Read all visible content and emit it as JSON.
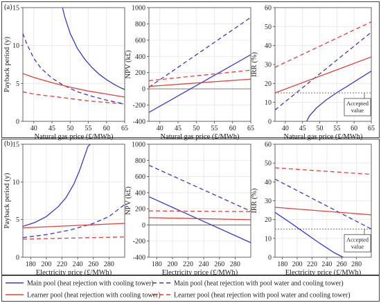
{
  "colors": {
    "blue": "#3a3acc",
    "red": "#e0403a",
    "brown": "#a8483a",
    "grid": "#e6e6e6",
    "frame": "#555555"
  },
  "chart_data": [
    {
      "id": "a1",
      "row_label": "(a)",
      "type": "line",
      "xlabel": "Natural gas price (£/MWh)",
      "ylabel": "Payback period (y)",
      "xlim": [
        37,
        65
      ],
      "ylim": [
        0,
        15
      ],
      "xticks": [
        "40",
        "45",
        "50",
        "55",
        "60",
        "65"
      ],
      "yticks": [
        "0",
        "5",
        "10",
        "15"
      ],
      "series": [
        {
          "name": "Main pool (heat rejection with cooling tower)",
          "style": "blue-solid",
          "x": [
            47.9,
            48.5,
            50,
            52,
            54,
            56,
            58,
            60,
            62,
            64,
            65
          ],
          "y": [
            15.0,
            13.8,
            11.6,
            9.6,
            8.2,
            7.1,
            6.2,
            5.5,
            4.9,
            4.4,
            4.2
          ]
        },
        {
          "name": "Main pool (heat rejection with pool water and cooling tower)",
          "style": "blue-dash",
          "x": [
            37,
            38,
            40,
            42,
            45,
            48,
            52,
            56,
            60,
            65
          ],
          "y": [
            11.6,
            10.3,
            8.3,
            7.0,
            5.7,
            4.8,
            3.9,
            3.3,
            2.8,
            2.3
          ]
        },
        {
          "name": "Learner pool (heat rejection with cooling tower)",
          "style": "red-solid",
          "x": [
            37,
            40,
            45,
            50,
            55,
            60,
            65
          ],
          "y": [
            6.3,
            5.8,
            5.1,
            4.5,
            4.0,
            3.6,
            3.2
          ]
        },
        {
          "name": "Learner pool (heat rejection with pool water and cooling tower)",
          "style": "red-dash",
          "x": [
            37,
            40,
            45,
            50,
            55,
            60,
            65
          ],
          "y": [
            3.9,
            3.6,
            3.3,
            3.0,
            2.7,
            2.5,
            2.3
          ]
        }
      ]
    },
    {
      "id": "a2",
      "type": "line",
      "xlabel": "Natural gas price (£/MWh)",
      "ylabel": "NPV (k£)",
      "xlim": [
        37,
        65
      ],
      "ylim": [
        -400,
        1000
      ],
      "xticks": [
        "40",
        "45",
        "50",
        "55",
        "60",
        "65"
      ],
      "yticks": [
        "-400",
        "-200",
        "0",
        "200",
        "400",
        "600",
        "800",
        "1000"
      ],
      "zero_line": true,
      "series": [
        {
          "style": "blue-solid",
          "x": [
            37,
            65
          ],
          "y": [
            -290,
            420
          ]
        },
        {
          "style": "blue-dash",
          "x": [
            37,
            65
          ],
          "y": [
            20,
            880
          ]
        },
        {
          "style": "red-solid",
          "x": [
            37,
            65
          ],
          "y": [
            30,
            120
          ]
        },
        {
          "style": "red-dash",
          "x": [
            37,
            65
          ],
          "y": [
            100,
            230
          ]
        }
      ]
    },
    {
      "id": "a3",
      "type": "line",
      "xlabel": "Natural gas price (£/MWh)",
      "ylabel": "IRR (%)",
      "xlim": [
        37,
        65
      ],
      "ylim": [
        0,
        60
      ],
      "xticks": [
        "40",
        "45",
        "50",
        "55",
        "60",
        "65"
      ],
      "yticks": [
        "0",
        "10",
        "20",
        "30",
        "40",
        "50",
        "60"
      ],
      "accepted_value": 15,
      "accepted_label": [
        "Accepted",
        "value"
      ],
      "series": [
        {
          "style": "blue-solid",
          "x": [
            46.2,
            47,
            49,
            52,
            55,
            58,
            61,
            65
          ],
          "y": [
            0,
            2.8,
            7.0,
            11.5,
            15.2,
            18.5,
            22.0,
            26.5
          ]
        },
        {
          "style": "blue-dash",
          "x": [
            37,
            65
          ],
          "y": [
            6,
            47
          ]
        },
        {
          "style": "red-solid",
          "x": [
            37,
            65
          ],
          "y": [
            15,
            34
          ]
        },
        {
          "style": "red-dash",
          "x": [
            37,
            65
          ],
          "y": [
            28.5,
            52.5
          ]
        }
      ]
    },
    {
      "id": "b1",
      "row_label": "(b)",
      "type": "line",
      "xlabel": "Electricity price (£/MWh)",
      "ylabel": "Payback period (y)",
      "xlim": [
        170,
        300
      ],
      "ylim": [
        0,
        15
      ],
      "xticks": [
        "180",
        "200",
        "220",
        "240",
        "260",
        "280"
      ],
      "yticks": [
        "0",
        "5",
        "10",
        "15"
      ],
      "series": [
        {
          "style": "blue-solid",
          "x": [
            170,
            185,
            200,
            215,
            225,
            235,
            242,
            248,
            253,
            256
          ],
          "y": [
            4.1,
            4.6,
            5.4,
            6.7,
            7.9,
            9.7,
            11.4,
            13.2,
            14.7,
            15.0
          ]
        },
        {
          "style": "blue-dash",
          "x": [
            170,
            200,
            230,
            260,
            280,
            300
          ],
          "y": [
            2.6,
            3.0,
            3.6,
            4.5,
            5.4,
            7.0
          ]
        },
        {
          "style": "red-solid",
          "x": [
            170,
            300
          ],
          "y": [
            3.9,
            4.5
          ]
        },
        {
          "style": "red-dash",
          "x": [
            170,
            300
          ],
          "y": [
            2.4,
            2.7
          ]
        }
      ]
    },
    {
      "id": "b2",
      "type": "line",
      "xlabel": "Electricity price (£/MWh)",
      "ylabel": "NPV (k£)",
      "xlim": [
        170,
        300
      ],
      "ylim": [
        -400,
        1000
      ],
      "xticks": [
        "180",
        "200",
        "220",
        "240",
        "260",
        "280"
      ],
      "yticks": [
        "-400",
        "-200",
        "0",
        "200",
        "400",
        "600",
        "800",
        "1000"
      ],
      "zero_line": true,
      "series": [
        {
          "style": "blue-solid",
          "x": [
            170,
            300
          ],
          "y": [
            350,
            -220
          ]
        },
        {
          "style": "blue-dash",
          "x": [
            170,
            300
          ],
          "y": [
            740,
            170
          ]
        },
        {
          "style": "red-solid",
          "x": [
            170,
            300
          ],
          "y": [
            90,
            65
          ]
        },
        {
          "style": "red-dash",
          "x": [
            170,
            300
          ],
          "y": [
            175,
            165
          ]
        }
      ]
    },
    {
      "id": "b3",
      "type": "line",
      "xlabel": "Electricity price (£/MWh)",
      "ylabel": "IRR (%)",
      "xlim": [
        170,
        300
      ],
      "ylim": [
        0,
        60
      ],
      "xticks": [
        "180",
        "200",
        "220",
        "240",
        "260",
        "280"
      ],
      "yticks": [
        "0",
        "10",
        "20",
        "30",
        "40",
        "50",
        "60"
      ],
      "accepted_value": 15,
      "accepted_label": [
        "Accepted",
        "value"
      ],
      "series": [
        {
          "style": "blue-solid",
          "x": [
            170,
            190,
            210,
            230,
            250,
            262
          ],
          "y": [
            23.8,
            18.5,
            13.0,
            7.5,
            2.4,
            0
          ]
        },
        {
          "style": "blue-dash",
          "x": [
            170,
            300
          ],
          "y": [
            41.5,
            15
          ]
        },
        {
          "style": "red-solid",
          "x": [
            170,
            300
          ],
          "y": [
            26.5,
            22.5
          ]
        },
        {
          "style": "red-dash",
          "x": [
            170,
            300
          ],
          "y": [
            47.5,
            44
          ]
        }
      ]
    }
  ],
  "legend": [
    {
      "label": "Main pool (heat rejection with cooling tower)",
      "style": "blue-solid"
    },
    {
      "label": "Main pool (heat rejection with pool water and cooling tower)",
      "style": "blue-dash"
    },
    {
      "label": "Learner pool (heat rejection with cooling tower)",
      "style": "red-solid"
    },
    {
      "label": "Learner pool (heat rejection with pool water and cooling tower)",
      "style": "red-dash"
    }
  ]
}
